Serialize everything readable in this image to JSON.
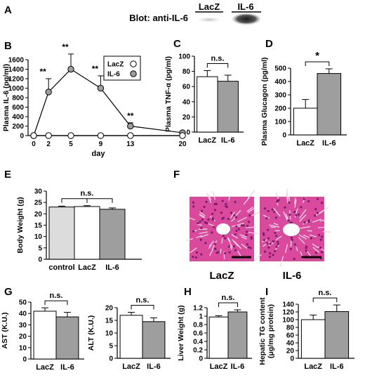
{
  "colors": {
    "white_bar": "#ffffff",
    "grey_bar": "#9e9e9e",
    "light_bar": "#dcdcdc",
    "tissue_pink": "#d94a9c"
  },
  "panelA": {
    "letter": "A",
    "blot_label": "Blot: anti-IL-6",
    "lanes": [
      "LacZ",
      "IL-6"
    ]
  },
  "panelF": {
    "letter": "F",
    "images": [
      "LacZ",
      "IL-6"
    ]
  },
  "chart_data": [
    {
      "id": "B",
      "letter": "B",
      "type": "line",
      "ylabel": "Plasma IL-6 (pg/ml)",
      "xlabel": "day",
      "xticks": [
        0,
        2,
        5,
        9,
        13,
        20
      ],
      "yticks": [
        0,
        200,
        400,
        600,
        800,
        1000,
        1200,
        1400,
        1600
      ],
      "xlim": [
        0,
        20
      ],
      "ylim": [
        0,
        1600
      ],
      "legend_position": "top-right",
      "series": [
        {
          "name": "LacZ",
          "color": "#ffffff",
          "x": [
            0,
            2,
            5,
            9,
            13,
            20
          ],
          "y": [
            0,
            0,
            0,
            0,
            0,
            0
          ],
          "err": [
            0,
            0,
            0,
            0,
            0,
            0
          ]
        },
        {
          "name": "IL-6",
          "color": "#9e9e9e",
          "x": [
            0,
            2,
            5,
            9,
            13,
            20
          ],
          "y": [
            0,
            920,
            1400,
            1000,
            200,
            60
          ],
          "err": [
            0,
            280,
            320,
            260,
            70,
            20
          ]
        }
      ],
      "annotations": [
        {
          "x": 2,
          "text": "**"
        },
        {
          "x": 5,
          "text": "**"
        },
        {
          "x": 9,
          "text": "**"
        },
        {
          "x": 13,
          "text": "**"
        }
      ]
    },
    {
      "id": "C",
      "letter": "C",
      "type": "bar",
      "ylabel": "Plasma TNF-α (pg/ml)",
      "categories": [
        "LacZ",
        "IL-6"
      ],
      "values": [
        73,
        67
      ],
      "errors": [
        8,
        8
      ],
      "colors": [
        "#ffffff",
        "#9e9e9e"
      ],
      "ylim": [
        0,
        100
      ],
      "yticks": [
        0,
        20,
        40,
        60,
        80,
        100
      ],
      "significance": "n.s."
    },
    {
      "id": "D",
      "letter": "D",
      "type": "bar",
      "ylabel": "Plasma Glucagon (pg/ml)",
      "categories": [
        "LacZ",
        "IL-6"
      ],
      "values": [
        200,
        460
      ],
      "errors": [
        65,
        35
      ],
      "colors": [
        "#ffffff",
        "#9e9e9e"
      ],
      "ylim": [
        0,
        500
      ],
      "yticks": [
        0,
        100,
        200,
        300,
        400,
        500
      ],
      "significance": "*"
    },
    {
      "id": "E",
      "letter": "E",
      "type": "bar",
      "ylabel": "Body Weight (g)",
      "categories": [
        "control",
        "LacZ",
        "IL-6"
      ],
      "values": [
        23,
        23.2,
        22
      ],
      "errors": [
        0.4,
        0.4,
        0.6
      ],
      "colors": [
        "#dcdcdc",
        "#ffffff",
        "#9e9e9e"
      ],
      "ylim": [
        0,
        30
      ],
      "yticks": [
        0,
        5,
        10,
        15,
        20,
        25,
        30
      ],
      "significance": "n.s."
    },
    {
      "id": "G1",
      "letter": "G",
      "type": "bar",
      "ylabel": "AST (K.U.)",
      "categories": [
        "LacZ",
        "IL-6"
      ],
      "values": [
        42,
        37
      ],
      "errors": [
        3,
        4
      ],
      "colors": [
        "#ffffff",
        "#9e9e9e"
      ],
      "ylim": [
        0,
        50
      ],
      "yticks": [
        0,
        10,
        20,
        30,
        40,
        50
      ],
      "significance": "n.s."
    },
    {
      "id": "G2",
      "letter": "",
      "type": "bar",
      "ylabel": "ALT (K.U.)",
      "categories": [
        "LacZ",
        "IL-6"
      ],
      "values": [
        17,
        14.5
      ],
      "errors": [
        1.2,
        1.5
      ],
      "colors": [
        "#ffffff",
        "#9e9e9e"
      ],
      "ylim": [
        0,
        20
      ],
      "yticks": [
        0,
        5,
        10,
        15,
        20
      ],
      "significance": "n.s."
    },
    {
      "id": "H",
      "letter": "H",
      "type": "bar",
      "ylabel": "Liver Weight (g)",
      "categories": [
        "LacZ",
        "IL-6"
      ],
      "values": [
        0.98,
        1.1
      ],
      "errors": [
        0.03,
        0.05
      ],
      "colors": [
        "#ffffff",
        "#9e9e9e"
      ],
      "ylim": [
        0,
        1.2
      ],
      "yticks": [
        0,
        0.2,
        0.4,
        0.6,
        0.8,
        1.0,
        1.2
      ],
      "significance": "n.s."
    },
    {
      "id": "I",
      "letter": "I",
      "type": "bar",
      "ylabel": "Hepatic TG content (μg/mg protein)",
      "categories": [
        "LacZ",
        "IL-6"
      ],
      "values": [
        100,
        121
      ],
      "errors": [
        12,
        17
      ],
      "colors": [
        "#ffffff",
        "#9e9e9e"
      ],
      "ylim": [
        0,
        140
      ],
      "yticks": [
        0,
        20,
        40,
        60,
        80,
        100,
        120,
        140
      ],
      "significance": "n.s."
    }
  ]
}
